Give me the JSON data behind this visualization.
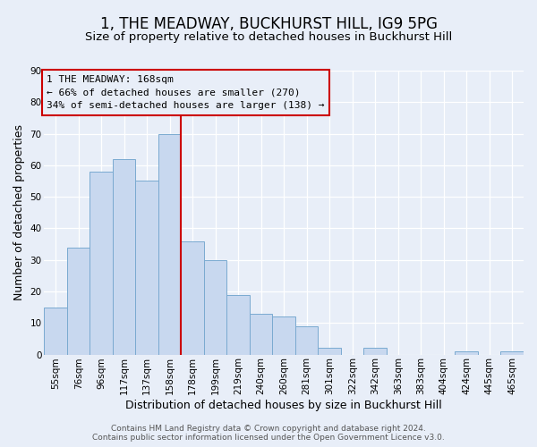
{
  "title": "1, THE MEADWAY, BUCKHURST HILL, IG9 5PG",
  "subtitle": "Size of property relative to detached houses in Buckhurst Hill",
  "xlabel": "Distribution of detached houses by size in Buckhurst Hill",
  "ylabel": "Number of detached properties",
  "background_color": "#e8eef8",
  "bar_color": "#c8d8ef",
  "bar_edge_color": "#7aaad0",
  "categories": [
    "55sqm",
    "76sqm",
    "96sqm",
    "117sqm",
    "137sqm",
    "158sqm",
    "178sqm",
    "199sqm",
    "219sqm",
    "240sqm",
    "260sqm",
    "281sqm",
    "301sqm",
    "322sqm",
    "342sqm",
    "363sqm",
    "383sqm",
    "404sqm",
    "424sqm",
    "445sqm",
    "465sqm"
  ],
  "values": [
    15,
    34,
    58,
    62,
    55,
    70,
    36,
    30,
    19,
    13,
    12,
    9,
    2,
    0,
    2,
    0,
    0,
    0,
    1,
    0,
    1
  ],
  "ylim": [
    0,
    90
  ],
  "yticks": [
    0,
    10,
    20,
    30,
    40,
    50,
    60,
    70,
    80,
    90
  ],
  "property_line_x": 5.5,
  "annotation_line1": "1 THE MEADWAY: 168sqm",
  "annotation_line2": "← 66% of detached houses are smaller (270)",
  "annotation_line3": "34% of semi-detached houses are larger (138) →",
  "footer_line1": "Contains HM Land Registry data © Crown copyright and database right 2024.",
  "footer_line2": "Contains public sector information licensed under the Open Government Licence v3.0.",
  "title_fontsize": 12,
  "subtitle_fontsize": 9.5,
  "axis_label_fontsize": 9,
  "tick_fontsize": 7.5,
  "annotation_fontsize": 8,
  "footer_fontsize": 6.5
}
